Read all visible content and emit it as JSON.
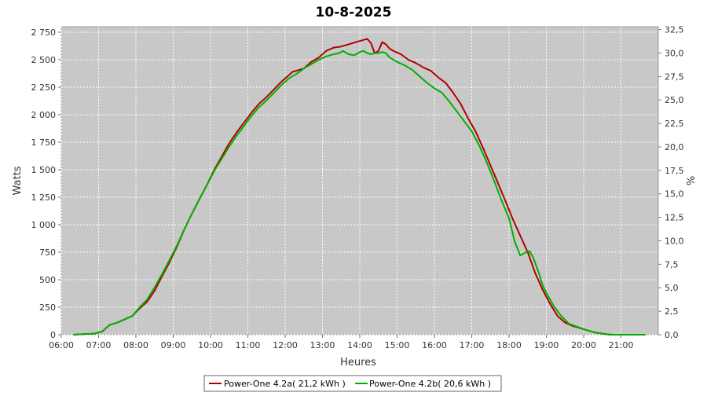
{
  "chart_data": {
    "type": "line",
    "title": "10-8-2025",
    "xlabel": "Heures",
    "ylabel": "Watts",
    "y2label": "%",
    "grid": true,
    "legend_position": "bottom",
    "x_tick_labels": [
      "06:00",
      "07:00",
      "08:00",
      "09:00",
      "10:00",
      "11:00",
      "12:00",
      "13:00",
      "14:00",
      "15:00",
      "16:00",
      "17:00",
      "18:00",
      "19:00",
      "20:00",
      "21:00"
    ],
    "xlim": [
      6.0,
      22.0
    ],
    "ylim": [
      0,
      2800
    ],
    "y_ticks": [
      0,
      250,
      500,
      750,
      1000,
      1250,
      1500,
      1750,
      2000,
      2250,
      2500,
      2750
    ],
    "y_tick_labels": [
      "0",
      "250",
      "500",
      "750",
      "1 000",
      "1 250",
      "1 500",
      "1 750",
      "2 000",
      "2 250",
      "2 500",
      "2 750"
    ],
    "y2lim": [
      0,
      32.8
    ],
    "y2_ticks": [
      0,
      2.5,
      5,
      7.5,
      10,
      12.5,
      15,
      17.5,
      20,
      22.5,
      25,
      27.5,
      30,
      32.5
    ],
    "y2_tick_labels": [
      "0,0",
      "2,5",
      "5,0",
      "7,5",
      "10,0",
      "12,5",
      "15,0",
      "17,5",
      "20,0",
      "22,5",
      "25,0",
      "27,5",
      "30,0",
      "32,5"
    ],
    "series": [
      {
        "name": "Power-One 4.2a( 21,2 kWh )",
        "color": "#b00000",
        "x": [
          6.33,
          6.6,
          6.9,
          7.1,
          7.3,
          7.5,
          7.7,
          7.9,
          8.1,
          8.3,
          8.5,
          8.7,
          8.9,
          9.1,
          9.3,
          9.5,
          9.7,
          9.9,
          10.1,
          10.3,
          10.5,
          10.7,
          10.9,
          11.1,
          11.3,
          11.5,
          11.7,
          11.9,
          12.0,
          12.1,
          12.2,
          12.3,
          12.5,
          12.7,
          12.9,
          13.1,
          13.3,
          13.5,
          13.7,
          13.9,
          14.1,
          14.2,
          14.3,
          14.4,
          14.5,
          14.6,
          14.7,
          14.8,
          14.9,
          15.1,
          15.3,
          15.5,
          15.7,
          15.9,
          16.1,
          16.3,
          16.5,
          16.7,
          16.9,
          17.1,
          17.3,
          17.5,
          17.7,
          17.9,
          18.1,
          18.3,
          18.5,
          18.7,
          18.9,
          19.1,
          19.3,
          19.5,
          19.7,
          19.9,
          20.1,
          20.3,
          20.5,
          20.7,
          20.9,
          21.1,
          21.3,
          21.65
        ],
        "values": [
          0,
          5,
          10,
          30,
          90,
          110,
          140,
          170,
          240,
          300,
          400,
          530,
          660,
          800,
          960,
          1100,
          1230,
          1360,
          1500,
          1620,
          1740,
          1840,
          1930,
          2020,
          2100,
          2160,
          2230,
          2300,
          2330,
          2360,
          2390,
          2400,
          2420,
          2480,
          2520,
          2580,
          2610,
          2620,
          2640,
          2660,
          2680,
          2690,
          2650,
          2560,
          2580,
          2660,
          2640,
          2600,
          2580,
          2550,
          2500,
          2470,
          2430,
          2400,
          2340,
          2290,
          2200,
          2100,
          1970,
          1850,
          1700,
          1540,
          1380,
          1220,
          1050,
          900,
          750,
          560,
          410,
          280,
          170,
          110,
          80,
          60,
          40,
          20,
          10,
          0,
          0,
          0,
          0,
          0
        ]
      },
      {
        "name": "Power-One 4.2b( 20,6 kWh )",
        "color": "#00b000",
        "x": [
          6.33,
          6.6,
          6.9,
          7.1,
          7.3,
          7.5,
          7.7,
          7.9,
          8.1,
          8.3,
          8.5,
          8.7,
          8.9,
          9.1,
          9.3,
          9.5,
          9.7,
          9.9,
          10.1,
          10.3,
          10.5,
          10.7,
          10.9,
          11.1,
          11.3,
          11.5,
          11.7,
          11.9,
          12.1,
          12.3,
          12.5,
          12.7,
          12.9,
          13.1,
          13.3,
          13.45,
          13.55,
          13.7,
          13.85,
          14.0,
          14.1,
          14.2,
          14.3,
          14.4,
          14.5,
          14.6,
          14.7,
          14.8,
          15.0,
          15.2,
          15.4,
          15.6,
          15.8,
          16.0,
          16.2,
          16.4,
          16.6,
          16.8,
          17.0,
          17.2,
          17.4,
          17.6,
          17.8,
          18.0,
          18.15,
          18.3,
          18.45,
          18.55,
          18.65,
          18.8,
          18.9,
          19.0,
          19.2,
          19.4,
          19.6,
          19.8,
          20.0,
          20.2,
          20.4,
          20.6,
          20.8,
          21.0,
          21.3,
          21.65
        ],
        "values": [
          0,
          5,
          10,
          30,
          90,
          110,
          140,
          170,
          250,
          320,
          430,
          550,
          680,
          810,
          960,
          1100,
          1230,
          1360,
          1490,
          1600,
          1710,
          1810,
          1900,
          1990,
          2070,
          2130,
          2200,
          2270,
          2330,
          2370,
          2420,
          2460,
          2500,
          2530,
          2550,
          2560,
          2580,
          2550,
          2540,
          2570,
          2580,
          2560,
          2550,
          2560,
          2560,
          2570,
          2560,
          2520,
          2480,
          2450,
          2410,
          2350,
          2290,
          2240,
          2200,
          2120,
          2030,
          1940,
          1850,
          1720,
          1570,
          1400,
          1220,
          1060,
          850,
          720,
          750,
          760,
          700,
          560,
          450,
          380,
          260,
          170,
          100,
          75,
          50,
          30,
          15,
          5,
          0,
          0,
          0,
          0
        ]
      }
    ]
  }
}
